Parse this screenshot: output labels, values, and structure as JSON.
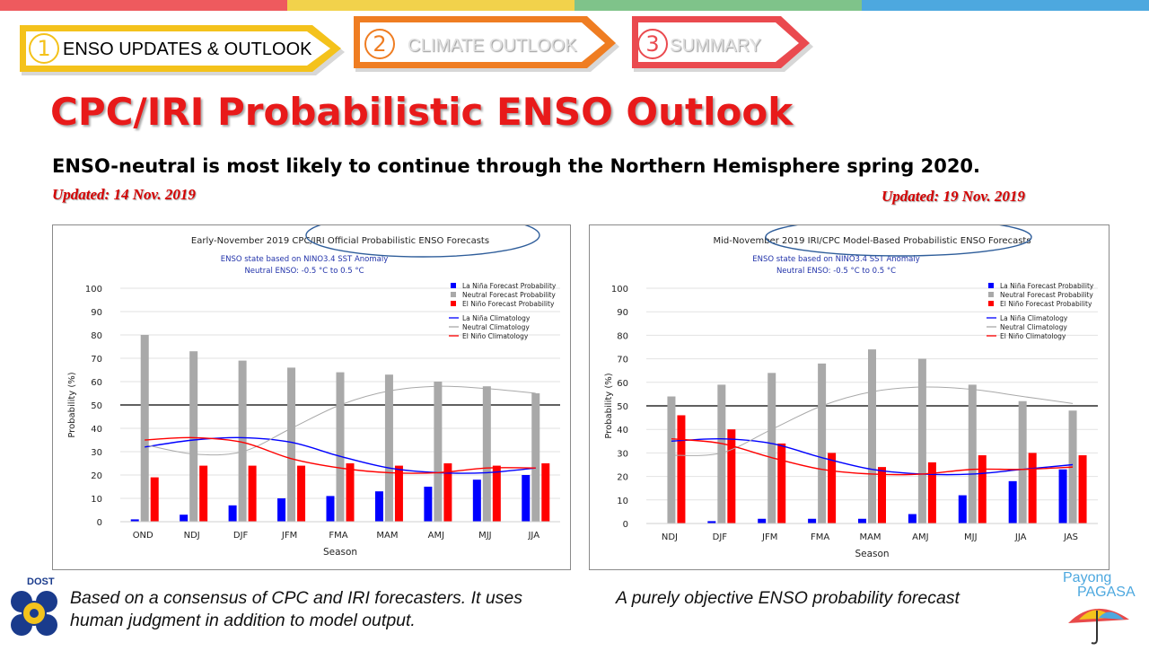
{
  "colors": {
    "strip": [
      "#ee5a5e",
      "#f2d24b",
      "#7fc38a",
      "#4da8df"
    ],
    "step1": "#f4c21b",
    "step2": "#ef7d22",
    "step3": "#ea4a4f",
    "title": "#e81a1a",
    "updated": "#d40000",
    "la_nina": "#0000ff",
    "neutral": "#a9a9a9",
    "el_nino": "#ff0000",
    "ellipse": "#2e5d9a"
  },
  "nav": {
    "steps": [
      {
        "number": "1",
        "label": "ENSO UPDATES & OUTLOOK",
        "active": true
      },
      {
        "number": "2",
        "label": "CLIMATE OUTLOOK",
        "active": false
      },
      {
        "number": "3",
        "label": "SUMMARY",
        "active": false
      }
    ]
  },
  "page": {
    "title": "CPC/IRI Probabilistic ENSO Outlook",
    "headline": "ENSO-neutral is most likely to continue through the Northern Hemisphere spring 2020.",
    "updated_left": "Updated: 14 Nov. 2019",
    "updated_right": "Updated: 19 Nov. 2019",
    "caption_left": "Based on a consensus of CPC and IRI forecasters. It uses human judgment in addition to model output.",
    "caption_right": "A purely objective ENSO probability forecast",
    "logo_left_text": "DOST",
    "logo_right_text_1": "Payong",
    "logo_right_text_2": "PAGASA"
  },
  "chart_data": [
    {
      "type": "bar",
      "title": "Early-November 2019 CPC/IRI Official Probabilistic ENSO Forecasts",
      "subtitle_1": "ENSO state based on NINO3.4 SST Anomaly",
      "subtitle_2": "Neutral ENSO: -0.5 °C to 0.5 °C",
      "xlabel": "Season",
      "ylabel": "Probability (%)",
      "ylim": [
        0,
        100
      ],
      "yticks": [
        "0",
        "10",
        "20",
        "30",
        "40",
        "50",
        "60",
        "70",
        "80",
        "90",
        "100"
      ],
      "reference_line": 50,
      "categories": [
        "OND",
        "NDJ",
        "DJF",
        "JFM",
        "FMA",
        "MAM",
        "AMJ",
        "MJJ",
        "JJA"
      ],
      "series": [
        {
          "name": "La Niña Forecast Probability",
          "values": [
            1,
            3,
            7,
            10,
            11,
            13,
            15,
            18,
            20
          ]
        },
        {
          "name": "Neutral Forecast Probability",
          "values": [
            80,
            73,
            69,
            66,
            64,
            63,
            60,
            58,
            55
          ]
        },
        {
          "name": "El Niño Forecast Probability",
          "values": [
            19,
            24,
            24,
            24,
            25,
            24,
            25,
            24,
            25
          ]
        }
      ],
      "climatology": [
        {
          "name": "La Niña Climatology",
          "values": [
            32,
            35,
            36,
            34,
            28,
            23,
            21,
            21,
            23
          ]
        },
        {
          "name": "Neutral Climatology",
          "values": [
            33,
            29,
            30,
            40,
            50,
            56,
            58,
            57,
            55
          ]
        },
        {
          "name": "El Niño Climatology",
          "values": [
            35,
            36,
            34,
            27,
            23,
            21,
            21,
            23,
            23
          ]
        }
      ],
      "legend": "top-right"
    },
    {
      "type": "bar",
      "title": "Mid-November 2019 IRI/CPC Model-Based Probabilistic ENSO Forecasts",
      "subtitle_1": "ENSO state based on NINO3.4 SST Anomaly",
      "subtitle_2": "Neutral ENSO: -0.5 °C to 0.5 °C",
      "xlabel": "Season",
      "ylabel": "Probability (%)",
      "ylim": [
        0,
        100
      ],
      "yticks": [
        "0",
        "10",
        "20",
        "30",
        "40",
        "50",
        "60",
        "70",
        "80",
        "90",
        "100"
      ],
      "reference_line": 50,
      "categories": [
        "NDJ",
        "DJF",
        "JFM",
        "FMA",
        "MAM",
        "AMJ",
        "MJJ",
        "JJA",
        "JAS"
      ],
      "series": [
        {
          "name": "La Niña Forecast Probability",
          "values": [
            0,
            1,
            2,
            2,
            2,
            4,
            12,
            18,
            23
          ]
        },
        {
          "name": "Neutral Forecast Probability",
          "values": [
            54,
            59,
            64,
            68,
            74,
            70,
            59,
            52,
            48
          ]
        },
        {
          "name": "El Niño Forecast Probability",
          "values": [
            46,
            40,
            34,
            30,
            24,
            26,
            29,
            30,
            29
          ]
        }
      ],
      "climatology": [
        {
          "name": "La Niña Climatology",
          "values": [
            35,
            36,
            34,
            28,
            23,
            21,
            21,
            23,
            25
          ]
        },
        {
          "name": "Neutral Climatology",
          "values": [
            29,
            30,
            40,
            50,
            56,
            58,
            57,
            54,
            51
          ]
        },
        {
          "name": "El Niño Climatology",
          "values": [
            36,
            34,
            28,
            23,
            21,
            21,
            23,
            23,
            24
          ]
        }
      ],
      "legend": "top-right"
    }
  ]
}
